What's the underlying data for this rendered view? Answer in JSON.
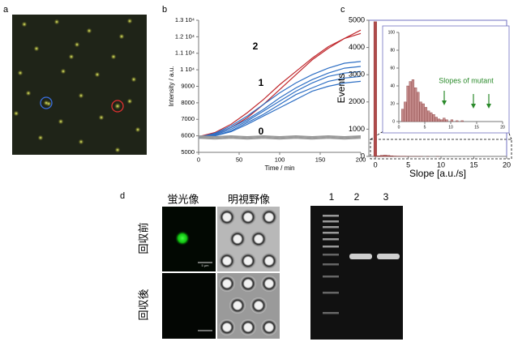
{
  "panels": [
    "a",
    "b",
    "c",
    "d"
  ],
  "chart_data": [
    {
      "type": "line",
      "xlabel": "Time / min",
      "ylabel": "Intensity / a.u.",
      "x": [
        0,
        20,
        40,
        60,
        80,
        100,
        120,
        140,
        160,
        180,
        200
      ],
      "xlim": [
        0,
        200
      ],
      "xticks": [
        0,
        50,
        100,
        150,
        200
      ],
      "ylim": [
        5000,
        13000
      ],
      "yticks": [
        5000,
        6000,
        7000,
        8000,
        9000,
        {
          "value": 10000,
          "label": "1 10⁴"
        },
        {
          "value": 11000,
          "label": "1.1 10⁴"
        },
        {
          "value": 12000,
          "label": "1.2 10⁴"
        },
        {
          "value": 13000,
          "label": "1.3 10⁴"
        }
      ],
      "annotations": [
        "2",
        "1",
        "0"
      ],
      "series": [
        {
          "color": "#c0282d",
          "values": [
            5900,
            6100,
            6500,
            7100,
            7900,
            8800,
            9700,
            10600,
            11300,
            11900,
            12400
          ]
        },
        {
          "color": "#c0282d",
          "values": [
            5950,
            6200,
            6700,
            7400,
            8200,
            9100,
            9900,
            10700,
            11400,
            11900,
            12200
          ]
        },
        {
          "color": "#2e6fc4",
          "values": [
            5900,
            6150,
            6600,
            7200,
            7900,
            8600,
            9200,
            9700,
            10100,
            10400,
            10500
          ]
        },
        {
          "color": "#2e6fc4",
          "values": [
            5950,
            6100,
            6500,
            7000,
            7600,
            8300,
            8900,
            9400,
            9800,
            10100,
            10200
          ]
        },
        {
          "color": "#2e6fc4",
          "values": [
            5900,
            6050,
            6400,
            6900,
            7500,
            8100,
            8700,
            9200,
            9600,
            9800,
            9900
          ]
        },
        {
          "color": "#2e6fc4",
          "values": [
            5850,
            6000,
            6300,
            6800,
            7300,
            7900,
            8500,
            8900,
            9300,
            9500,
            9600
          ]
        },
        {
          "color": "#2e6fc4",
          "values": [
            5900,
            6000,
            6250,
            6700,
            7200,
            7700,
            8200,
            8700,
            9000,
            9200,
            9300
          ]
        },
        {
          "color": "#999999",
          "values": [
            5950,
            5900,
            5950,
            5900,
            5950,
            5900,
            5950,
            5900,
            5950,
            5900,
            5950
          ]
        },
        {
          "color": "#999999",
          "values": [
            5900,
            5850,
            5900,
            5850,
            5900,
            5850,
            5900,
            5850,
            5900,
            5850,
            5900
          ]
        },
        {
          "color": "#999999",
          "values": [
            5850,
            5800,
            5850,
            5800,
            5850,
            5800,
            5850,
            5800,
            5850,
            5800,
            5850
          ]
        },
        {
          "color": "#999999",
          "values": [
            6000,
            5950,
            6000,
            5950,
            6000,
            5950,
            6000,
            5950,
            6000,
            5950,
            6000
          ]
        }
      ]
    },
    {
      "type": "histogram",
      "xlabel": "Slope [a.u./s]",
      "ylabel": "Events",
      "color": "#b04a4a",
      "bins": [
        -0.25,
        0.25,
        0.75,
        1.25,
        1.75,
        2.25,
        2.75,
        3.25,
        3.75,
        4.25,
        4.75,
        5.25,
        5.75,
        6.25,
        6.75,
        7.25,
        7.75,
        8.25,
        8.75,
        9.25,
        9.75
      ],
      "values": [
        4950,
        25,
        40,
        45,
        35,
        25,
        15,
        12,
        8,
        5,
        3,
        2,
        2,
        1,
        1,
        0,
        1,
        0,
        0,
        1
      ],
      "xlim": [
        -1,
        20
      ],
      "xticks": [
        0,
        5,
        10,
        15,
        20
      ],
      "ylim": [
        0,
        5000
      ],
      "yticks": [
        0,
        1000,
        2000,
        3000,
        4000,
        5000
      ]
    },
    {
      "type": "histogram",
      "color": "#c48a8a",
      "annotation": "Slopes  of mutant",
      "bins": [
        0,
        0.5,
        1,
        1.5,
        2,
        2.5,
        3,
        3.5,
        4,
        4.5,
        5,
        5.5,
        6,
        6.5,
        7,
        7.5,
        8,
        8.5,
        9,
        9.5,
        10,
        10.5,
        11,
        11.5,
        12,
        12.5,
        13,
        13.5,
        14,
        14.5,
        15,
        15.5,
        16,
        16.5,
        17,
        17.5,
        18,
        18.5,
        19,
        19.5,
        20
      ],
      "values": [
        0,
        14,
        22,
        40,
        45,
        47,
        38,
        33,
        22,
        20,
        16,
        12,
        10,
        8,
        5,
        3,
        2,
        4,
        2,
        0,
        2,
        0,
        1,
        0,
        1,
        0,
        0,
        0,
        0,
        0,
        0,
        0,
        0,
        0,
        0,
        0,
        0,
        0,
        0,
        0
      ],
      "xlim": [
        0,
        20
      ],
      "xticks": [
        0,
        5,
        10,
        15,
        20
      ],
      "ylim": [
        0,
        100
      ],
      "yticks": [
        0,
        20,
        40,
        60,
        80,
        100
      ]
    }
  ],
  "figure_d": {
    "fluorescence": "蛍光像",
    "brightfield": "明視野像",
    "before": "回収前",
    "after": "回収後",
    "scale": "5 μm",
    "lanes": [
      "1",
      "2",
      "3"
    ]
  }
}
